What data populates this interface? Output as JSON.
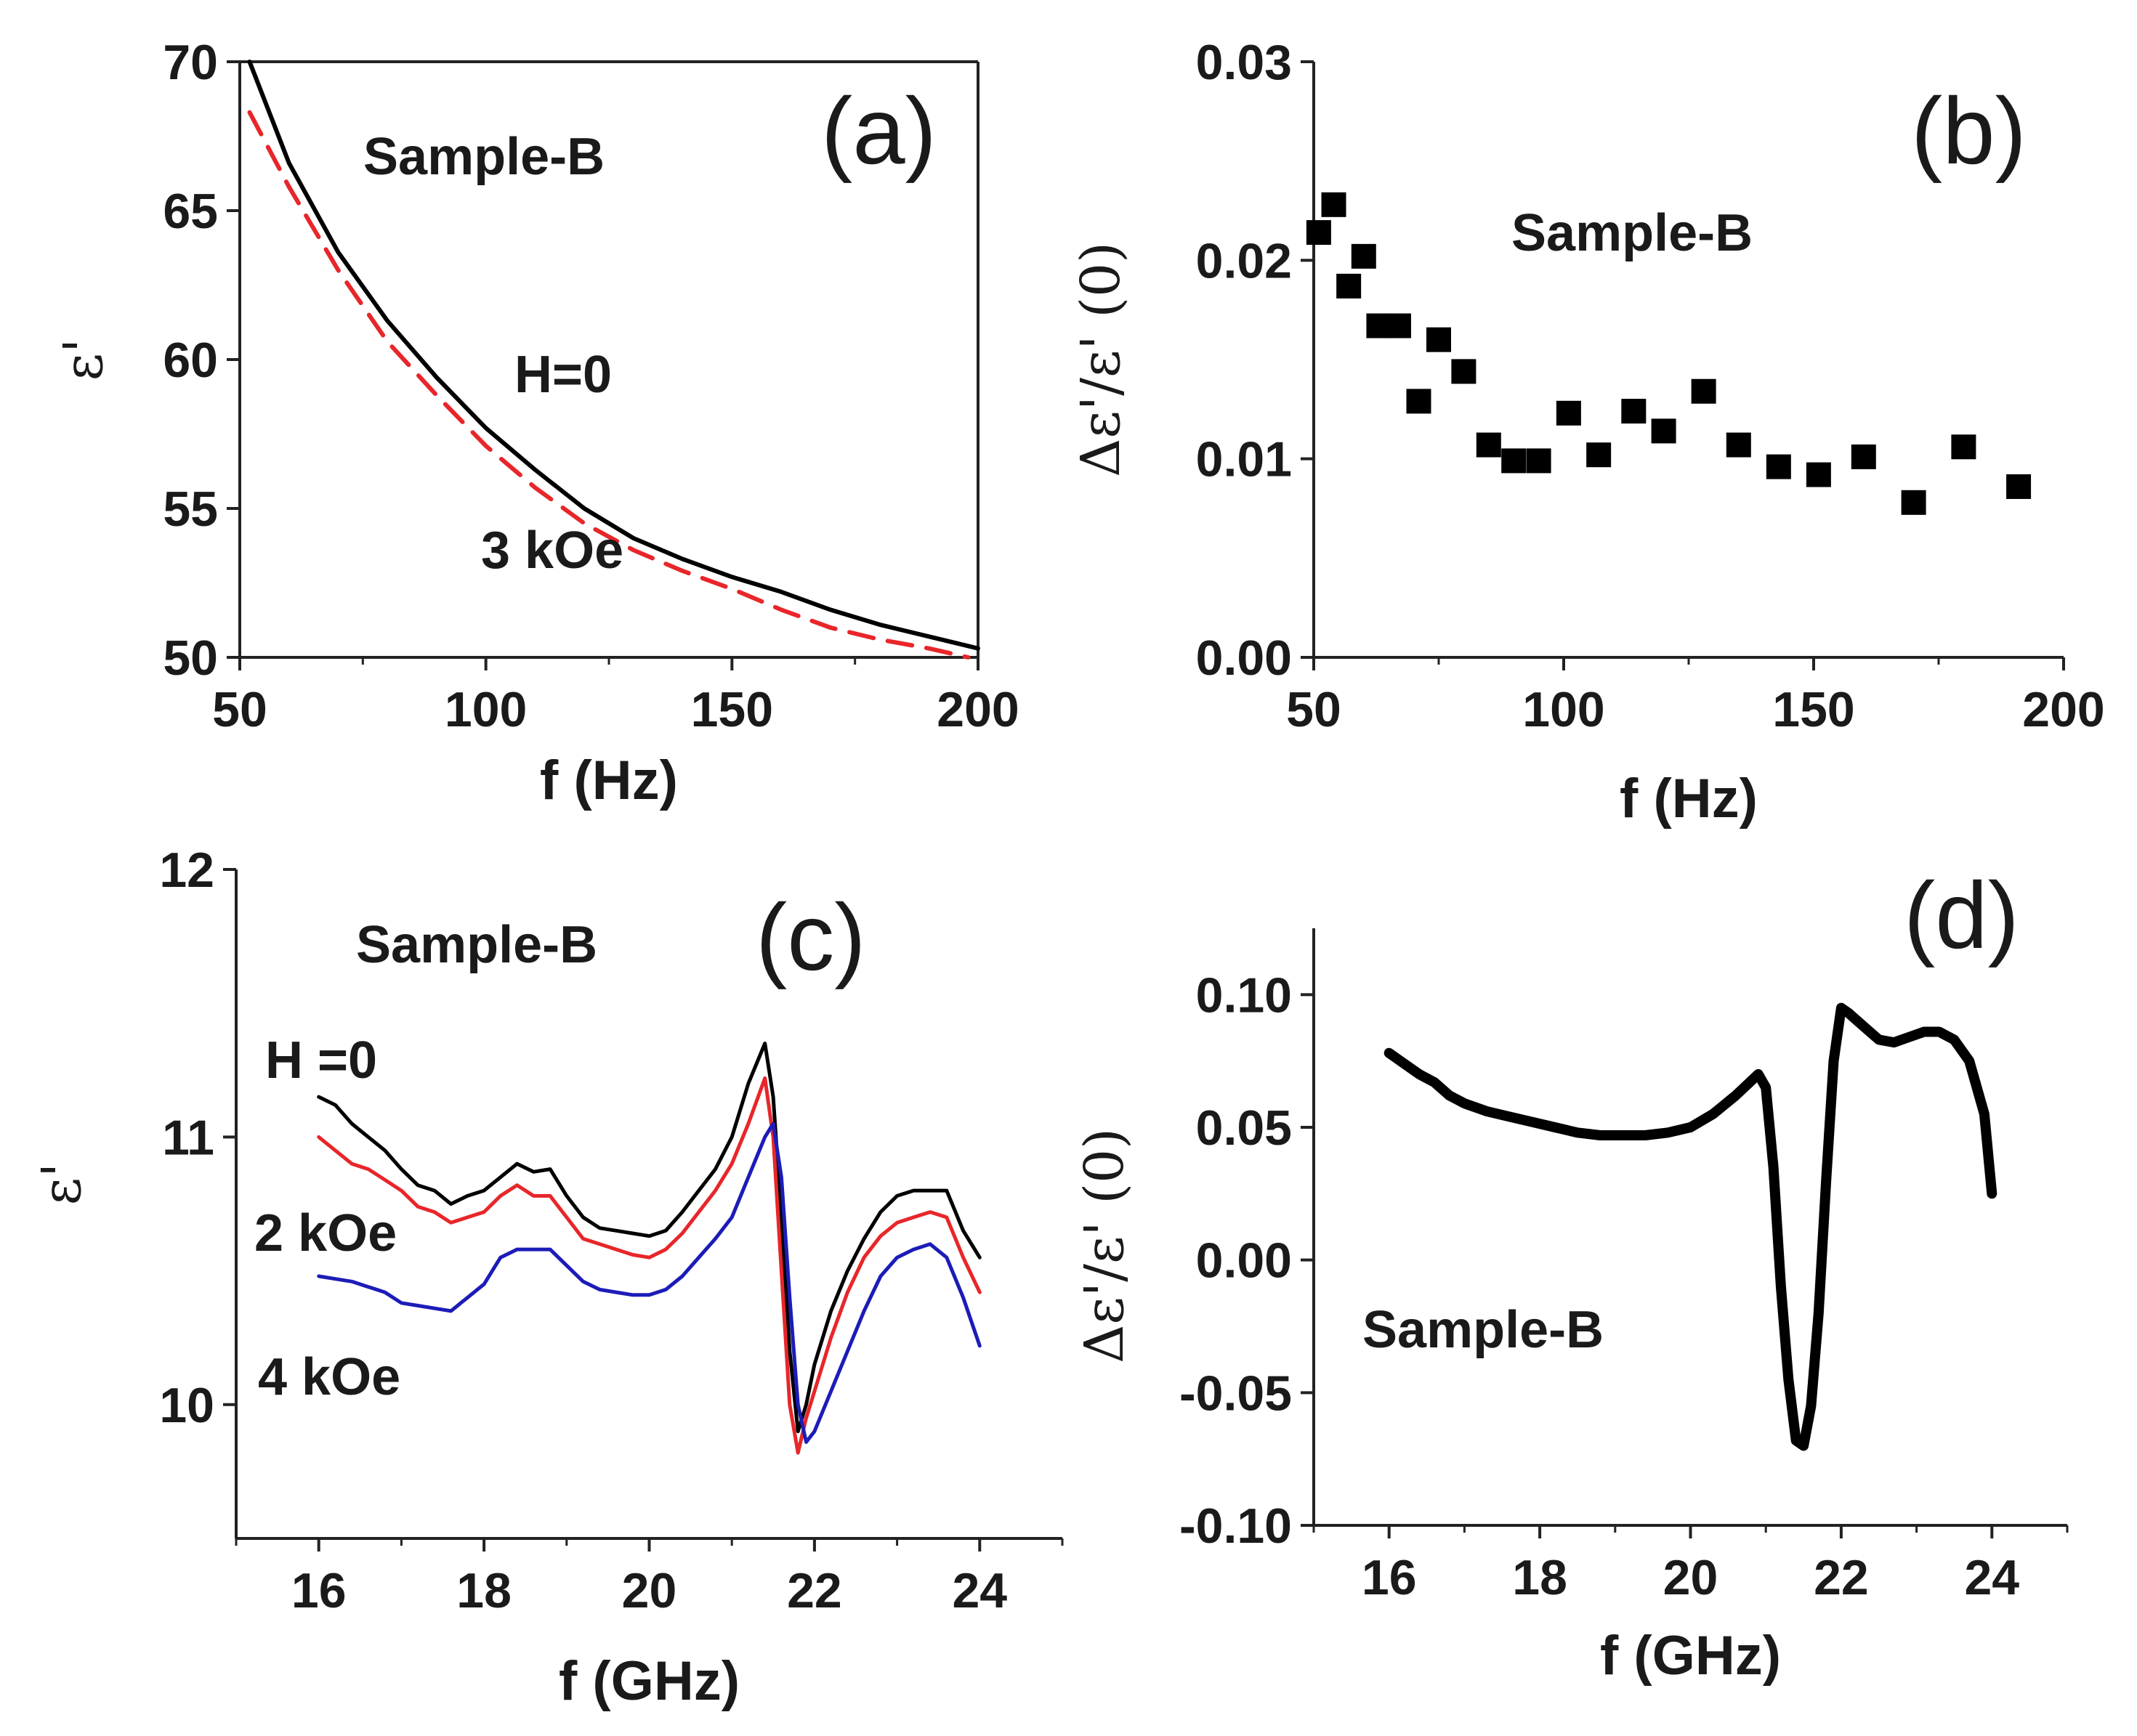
{
  "chart_data": [
    {
      "panel": "(a)",
      "type": "line",
      "title": "",
      "annotation": "Sample-B",
      "xlabel": "f (Hz)",
      "ylabel": "ε'",
      "xlim": [
        50,
        200
      ],
      "ylim": [
        50,
        70
      ],
      "xticks": [
        50,
        100,
        150,
        200
      ],
      "yticks": [
        50,
        55,
        60,
        65,
        70
      ],
      "series": [
        {
          "name": "H=0",
          "label": "H=0",
          "color": "#000000",
          "dash": "solid",
          "x": [
            52,
            60,
            70,
            80,
            90,
            100,
            110,
            120,
            130,
            140,
            150,
            160,
            170,
            180,
            190,
            200
          ],
          "y": [
            70.0,
            66.6,
            63.6,
            61.3,
            59.4,
            57.7,
            56.3,
            55.0,
            54.0,
            53.3,
            52.7,
            52.2,
            51.6,
            51.1,
            50.7,
            50.3
          ]
        },
        {
          "name": "3 kOe",
          "label": "3 kOe",
          "color": "#e8262a",
          "dash": "dashed",
          "x": [
            52,
            60,
            70,
            80,
            90,
            100,
            110,
            120,
            130,
            140,
            150,
            160,
            170,
            180,
            190,
            198
          ],
          "y": [
            68.3,
            65.8,
            63.0,
            60.6,
            58.8,
            57.1,
            55.7,
            54.5,
            53.6,
            52.9,
            52.3,
            51.6,
            51.0,
            50.6,
            50.3,
            50.0
          ]
        }
      ]
    },
    {
      "panel": "(b)",
      "type": "scatter",
      "title": "",
      "annotation": "Sample-B",
      "xlabel": "f (Hz)",
      "ylabel": "Δε'/ε' (0)",
      "xlim": [
        50,
        200
      ],
      "ylim": [
        0.0,
        0.03
      ],
      "xticks": [
        50,
        100,
        150,
        200
      ],
      "yticks": [
        "0.00",
        "0.01",
        "0.02",
        "0.03"
      ],
      "yticks_values": [
        0.0,
        0.01,
        0.02,
        0.03
      ],
      "series": [
        {
          "name": "Sample-B",
          "color": "#000000",
          "x": [
            51,
            54,
            57,
            60,
            63,
            67,
            71,
            75,
            80,
            85,
            90,
            95,
            101,
            107,
            114,
            120,
            128,
            135,
            143,
            151,
            160,
            170,
            180,
            191
          ],
          "y": [
            0.0214,
            0.0228,
            0.0187,
            0.0202,
            0.0167,
            0.0167,
            0.0129,
            0.016,
            0.0144,
            0.0107,
            0.0099,
            0.0099,
            0.0123,
            0.0102,
            0.0124,
            0.0114,
            0.0134,
            0.0107,
            0.0096,
            0.0092,
            0.0101,
            0.0078,
            0.0106,
            0.0086
          ]
        }
      ]
    },
    {
      "panel": "(c)",
      "type": "line",
      "title": "",
      "annotation": "Sample-B",
      "xlabel": "f (GHz)",
      "ylabel": "ε'",
      "xlim": [
        15,
        25
      ],
      "ylim": [
        9.5,
        12
      ],
      "xticks": [
        16,
        18,
        20,
        22,
        24
      ],
      "yticks": [
        10,
        11,
        12
      ],
      "series": [
        {
          "name": "H =0",
          "label": "H =0",
          "color": "#000000",
          "x": [
            16.0,
            16.2,
            16.4,
            16.6,
            16.8,
            17.0,
            17.2,
            17.4,
            17.6,
            17.8,
            18.0,
            18.2,
            18.4,
            18.6,
            18.8,
            19.0,
            19.2,
            19.4,
            19.6,
            19.8,
            20.0,
            20.2,
            20.4,
            20.6,
            20.8,
            21.0,
            21.2,
            21.4,
            21.5,
            21.6,
            21.7,
            21.8,
            21.9,
            22.0,
            22.2,
            22.4,
            22.6,
            22.8,
            23.0,
            23.2,
            23.4,
            23.6,
            23.8,
            24.0
          ],
          "y": [
            11.15,
            11.12,
            11.05,
            11.0,
            10.95,
            10.88,
            10.82,
            10.8,
            10.75,
            10.78,
            10.8,
            10.85,
            10.9,
            10.87,
            10.88,
            10.78,
            10.7,
            10.66,
            10.65,
            10.64,
            10.63,
            10.65,
            10.72,
            10.8,
            10.88,
            11.0,
            11.2,
            11.35,
            11.15,
            10.7,
            10.2,
            9.9,
            10.0,
            10.15,
            10.35,
            10.5,
            10.62,
            10.72,
            10.78,
            10.8,
            10.8,
            10.8,
            10.65,
            10.55
          ]
        },
        {
          "name": "2 kOe",
          "label": "2 kOe",
          "color": "#e8262a",
          "x": [
            16.0,
            16.2,
            16.4,
            16.6,
            16.8,
            17.0,
            17.2,
            17.4,
            17.6,
            17.8,
            18.0,
            18.2,
            18.4,
            18.6,
            18.8,
            19.0,
            19.2,
            19.4,
            19.6,
            19.8,
            20.0,
            20.2,
            20.4,
            20.6,
            20.8,
            21.0,
            21.2,
            21.4,
            21.5,
            21.6,
            21.7,
            21.8,
            21.9,
            22.0,
            22.2,
            22.4,
            22.6,
            22.8,
            23.0,
            23.2,
            23.4,
            23.6,
            23.8,
            24.0
          ],
          "y": [
            11.0,
            10.95,
            10.9,
            10.88,
            10.84,
            10.8,
            10.74,
            10.72,
            10.68,
            10.7,
            10.72,
            10.78,
            10.82,
            10.78,
            10.78,
            10.7,
            10.62,
            10.6,
            10.58,
            10.56,
            10.55,
            10.58,
            10.64,
            10.72,
            10.8,
            10.9,
            11.05,
            11.22,
            11.0,
            10.5,
            10.0,
            9.82,
            9.95,
            10.05,
            10.25,
            10.42,
            10.55,
            10.63,
            10.68,
            10.7,
            10.72,
            10.7,
            10.55,
            10.42
          ]
        },
        {
          "name": "4 kOe",
          "label": "4 kOe",
          "color": "#1c1cb8",
          "x": [
            16.0,
            16.2,
            16.4,
            16.6,
            16.8,
            17.0,
            17.2,
            17.4,
            17.6,
            17.8,
            18.0,
            18.2,
            18.4,
            18.6,
            18.8,
            19.0,
            19.2,
            19.4,
            19.6,
            19.8,
            20.0,
            20.2,
            20.4,
            20.6,
            20.8,
            21.0,
            21.2,
            21.4,
            21.5,
            21.6,
            21.7,
            21.8,
            21.9,
            22.0,
            22.2,
            22.4,
            22.6,
            22.8,
            23.0,
            23.2,
            23.4,
            23.6,
            23.8,
            24.0
          ],
          "y": [
            10.48,
            10.47,
            10.46,
            10.44,
            10.42,
            10.38,
            10.37,
            10.36,
            10.35,
            10.4,
            10.45,
            10.55,
            10.58,
            10.58,
            10.58,
            10.52,
            10.46,
            10.43,
            10.42,
            10.41,
            10.41,
            10.43,
            10.48,
            10.55,
            10.62,
            10.7,
            10.85,
            11.0,
            11.05,
            10.85,
            10.4,
            10.0,
            9.86,
            9.9,
            10.05,
            10.2,
            10.35,
            10.48,
            10.55,
            10.58,
            10.6,
            10.55,
            10.4,
            10.22
          ]
        }
      ]
    },
    {
      "panel": "(d)",
      "type": "line",
      "title": "",
      "annotation": "Sample-B",
      "xlabel": "f (GHz)",
      "ylabel": "Δε'/ε' (0)",
      "xlim": [
        15,
        25
      ],
      "ylim": [
        -0.1,
        0.125
      ],
      "xticks": [
        16,
        18,
        20,
        22,
        24
      ],
      "yticks": [
        "-0.10",
        "-0.05",
        "0.00",
        "0.05",
        "0.10"
      ],
      "yticks_values": [
        -0.1,
        -0.05,
        0.0,
        0.05,
        0.1
      ],
      "series": [
        {
          "name": "Sample-B",
          "color": "#000000",
          "x": [
            16.0,
            16.2,
            16.4,
            16.6,
            16.8,
            17.0,
            17.3,
            17.6,
            17.9,
            18.2,
            18.5,
            18.8,
            19.1,
            19.4,
            19.7,
            20.0,
            20.3,
            20.6,
            20.9,
            21.0,
            21.1,
            21.2,
            21.3,
            21.4,
            21.5,
            21.6,
            21.7,
            21.8,
            21.9,
            22.0,
            22.1,
            22.3,
            22.5,
            22.7,
            22.9,
            23.1,
            23.3,
            23.5,
            23.7,
            23.9,
            24.0
          ],
          "y": [
            0.078,
            0.074,
            0.07,
            0.067,
            0.062,
            0.059,
            0.056,
            0.054,
            0.052,
            0.05,
            0.048,
            0.047,
            0.047,
            0.047,
            0.048,
            0.05,
            0.055,
            0.062,
            0.07,
            0.065,
            0.035,
            -0.01,
            -0.045,
            -0.068,
            -0.07,
            -0.055,
            -0.02,
            0.03,
            0.075,
            0.095,
            0.093,
            0.088,
            0.083,
            0.082,
            0.084,
            0.086,
            0.086,
            0.083,
            0.075,
            0.055,
            0.025
          ]
        }
      ]
    }
  ]
}
